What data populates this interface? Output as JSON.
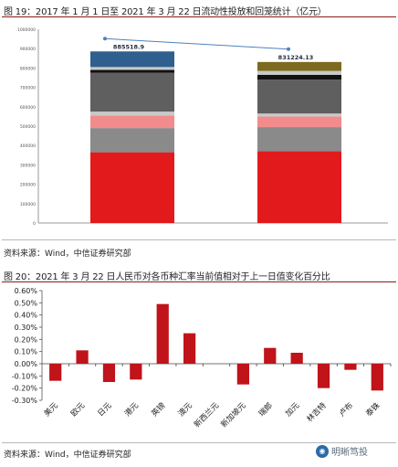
{
  "figure1": {
    "title": "图 19：2017 年 1 月 1 日至 2021 年 3 月 22 日流动性投放和回笼统计（亿元）",
    "source": "资料来源：Wind，中信证券研究部"
  },
  "figure2": {
    "title": "图 20：2021 年 3 月 22 日人民币对各币种汇率当前值相对于上一日值变化百分比",
    "source": "资料来源：Wind，中信证券研究部"
  },
  "watermark": {
    "text": "明晰笃投",
    "logo": "wechat-logo"
  },
  "colors": {
    "bar_red": "#e31a1c",
    "bar_gray": "#8a8a8a",
    "bar_pink": "#f28c8c",
    "bar_lightgray": "#c9c9c9",
    "bar_darkgray": "#5f5f5f",
    "bar_black": "#111111",
    "bar_blue": "#2f5f8f",
    "bar_olive": "#7d6a1e",
    "trend_line": "#4f81bd",
    "bar2_red": "#c0131a"
  },
  "chart_data": [
    {
      "type": "bar",
      "stacked": true,
      "categories": [
        "",
        ""
      ],
      "totals": [
        885518.9,
        831224.13
      ],
      "total_labels": [
        "885518.9",
        "831224.13"
      ],
      "ylim": [
        0,
        1000000
      ],
      "yticks": [
        "0",
        "100000",
        "200000",
        "300000",
        "400000",
        "500000",
        "600000",
        "700000",
        "800000",
        "900000",
        "1000000"
      ],
      "series": [
        {
          "color_key": "bar_red",
          "values": [
            365000,
            370000
          ]
        },
        {
          "color_key": "bar_gray",
          "values": [
            125000,
            125000
          ]
        },
        {
          "color_key": "bar_pink",
          "values": [
            65000,
            55000
          ]
        },
        {
          "color_key": "bar_lightgray",
          "values": [
            20000,
            15000
          ]
        },
        {
          "color_key": "bar_darkgray",
          "values": [
            200000,
            175000
          ]
        },
        {
          "color_key": "bar_black",
          "values": [
            15000,
            25000
          ]
        },
        {
          "color_key": "bar_lightgray",
          "values": [
            15000,
            20000
          ]
        },
        {
          "color_key": "bar_blue",
          "values": [
            80500,
            0
          ]
        },
        {
          "color_key": "bar_olive",
          "values": [
            0,
            46000
          ]
        }
      ],
      "grid": false,
      "legend": "segment-labels"
    },
    {
      "type": "bar",
      "categories": [
        "美元",
        "欧元",
        "日元",
        "港元",
        "英镑",
        "澳元",
        "新西兰元",
        "新加坡元",
        "瑞郎",
        "加元",
        "林吉特",
        "卢布",
        "泰铢"
      ],
      "values": [
        -0.14,
        0.11,
        -0.15,
        -0.13,
        0.49,
        0.25,
        0.0,
        -0.17,
        0.13,
        0.09,
        -0.2,
        -0.05,
        -0.22
      ],
      "ylim": [
        -0.3,
        0.6
      ],
      "yticks": [
        "-0.30%",
        "-0.20%",
        "-0.10%",
        "0.00%",
        "0.10%",
        "0.20%",
        "0.30%",
        "0.40%",
        "0.50%",
        "0.60%"
      ],
      "grid": false,
      "legend": "none"
    }
  ]
}
